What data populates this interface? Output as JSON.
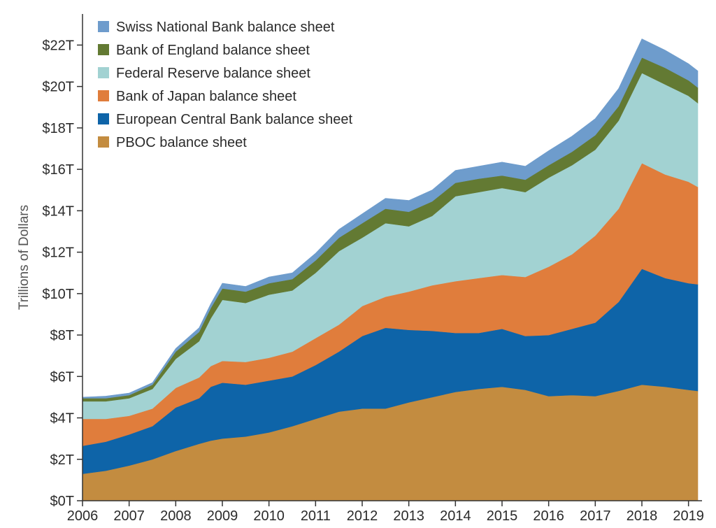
{
  "chart_data": {
    "type": "area",
    "stacked": true,
    "title": "",
    "xlabel": "",
    "ylabel": "Trillions of Dollars",
    "xlim": [
      2006,
      2019.2
    ],
    "ylim": [
      0,
      23.5
    ],
    "x_ticks": [
      2006,
      2007,
      2008,
      2009,
      2010,
      2011,
      2012,
      2013,
      2014,
      2015,
      2016,
      2017,
      2018,
      2019
    ],
    "x_tick_labels": [
      "2006",
      "2007",
      "2008",
      "2009",
      "2010",
      "2011",
      "2012",
      "2013",
      "2014",
      "2015",
      "2016",
      "2017",
      "2018",
      "2019"
    ],
    "y_ticks": [
      0,
      2,
      4,
      6,
      8,
      10,
      12,
      14,
      16,
      18,
      20,
      22
    ],
    "y_tick_labels": [
      "$0T",
      "$2T",
      "$4T",
      "$6T",
      "$8T",
      "$10T",
      "$12T",
      "$14T",
      "$16T",
      "$18T",
      "$20T",
      "$22T"
    ],
    "grid": false,
    "legend_position": "top-left",
    "x": [
      2006.0,
      2006.5,
      2007.0,
      2007.5,
      2008.0,
      2008.5,
      2008.75,
      2009.0,
      2009.5,
      2010.0,
      2010.5,
      2011.0,
      2011.5,
      2012.0,
      2012.5,
      2013.0,
      2013.5,
      2014.0,
      2014.5,
      2015.0,
      2015.5,
      2016.0,
      2016.5,
      2017.0,
      2017.5,
      2018.0,
      2018.5,
      2019.0,
      2019.2
    ],
    "series": [
      {
        "name": "PBOC balance sheet",
        "color": "#c38c40",
        "values": [
          1.3,
          1.45,
          1.7,
          2.0,
          2.4,
          2.75,
          2.9,
          3.0,
          3.1,
          3.3,
          3.6,
          3.95,
          4.3,
          4.45,
          4.45,
          4.75,
          5.0,
          5.25,
          5.4,
          5.5,
          5.35,
          5.05,
          5.1,
          5.05,
          5.3,
          5.6,
          5.5,
          5.35,
          5.3
        ]
      },
      {
        "name": "European Central Bank balance sheet",
        "color": "#0e64a8",
        "values": [
          1.35,
          1.4,
          1.5,
          1.6,
          2.1,
          2.2,
          2.6,
          2.7,
          2.5,
          2.5,
          2.4,
          2.6,
          2.9,
          3.5,
          3.9,
          3.5,
          3.2,
          2.85,
          2.7,
          2.8,
          2.6,
          2.95,
          3.2,
          3.55,
          4.3,
          5.6,
          5.25,
          5.15,
          5.15
        ]
      },
      {
        "name": "Bank of Japan balance sheet",
        "color": "#e07d3c",
        "values": [
          1.3,
          1.1,
          0.9,
          0.85,
          0.95,
          1.0,
          1.0,
          1.05,
          1.1,
          1.1,
          1.2,
          1.3,
          1.3,
          1.45,
          1.5,
          1.85,
          2.2,
          2.5,
          2.65,
          2.6,
          2.85,
          3.3,
          3.6,
          4.2,
          4.5,
          5.1,
          5.0,
          4.9,
          4.7
        ]
      },
      {
        "name": "Federal Reserve balance sheet",
        "color": "#a2d2d2",
        "values": [
          0.85,
          0.85,
          0.85,
          0.95,
          1.4,
          1.75,
          2.3,
          2.95,
          2.85,
          3.05,
          2.95,
          3.15,
          3.55,
          3.3,
          3.55,
          3.15,
          3.35,
          4.1,
          4.15,
          4.2,
          4.1,
          4.3,
          4.3,
          4.15,
          4.25,
          4.35,
          4.35,
          4.15,
          4.05
        ]
      },
      {
        "name": "Bank of England balance sheet",
        "color": "#637a33",
        "values": [
          0.15,
          0.15,
          0.15,
          0.2,
          0.35,
          0.45,
          0.5,
          0.55,
          0.55,
          0.55,
          0.55,
          0.6,
          0.65,
          0.7,
          0.7,
          0.7,
          0.7,
          0.65,
          0.65,
          0.6,
          0.6,
          0.6,
          0.65,
          0.7,
          0.7,
          0.75,
          0.8,
          0.75,
          0.75
        ]
      },
      {
        "name": "Swiss National Bank balance sheet",
        "color": "#6e9ccc",
        "values": [
          0.05,
          0.1,
          0.1,
          0.1,
          0.15,
          0.2,
          0.2,
          0.25,
          0.25,
          0.3,
          0.3,
          0.35,
          0.4,
          0.45,
          0.5,
          0.55,
          0.55,
          0.6,
          0.6,
          0.65,
          0.65,
          0.7,
          0.75,
          0.8,
          0.85,
          0.9,
          0.85,
          0.8,
          0.8
        ]
      }
    ]
  }
}
